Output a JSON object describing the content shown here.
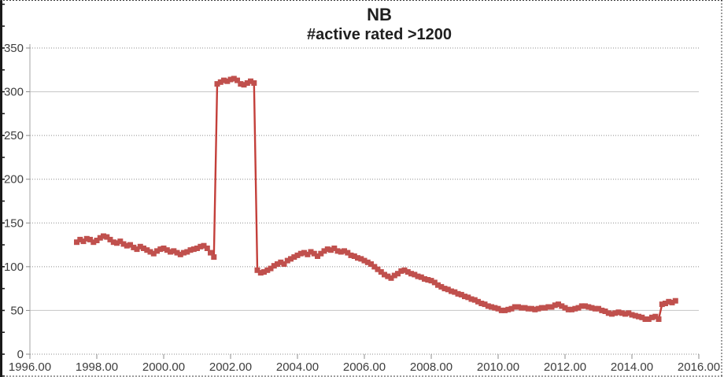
{
  "chart_data": {
    "type": "line",
    "title": "NB",
    "subtitle": "#active rated >1200",
    "xlabel": "",
    "ylabel": "",
    "xlim": [
      1996,
      2016
    ],
    "ylim": [
      0,
      350
    ],
    "grid": "horizontal",
    "legend": "none",
    "marker": "square",
    "x_ticks": {
      "values": [
        1996,
        1998,
        2000,
        2002,
        2004,
        2006,
        2008,
        2010,
        2012,
        2014,
        2016
      ],
      "labels": [
        "1996.00",
        "1998.00",
        "2000.00",
        "2002.00",
        "2004.00",
        "2006.00",
        "2008.00",
        "2010.00",
        "2012.00",
        "2014.00",
        "2016.00"
      ]
    },
    "y_ticks": {
      "values": [
        0,
        50,
        100,
        150,
        200,
        250,
        300,
        350
      ],
      "labels": [
        "0",
        "50",
        "100",
        "150",
        "200",
        "250",
        "300",
        "350"
      ]
    },
    "series": [
      {
        "name": "#active rated >1200",
        "x_start": 1997.4,
        "x_step": 0.1,
        "values": [
          128,
          131,
          129,
          132,
          131,
          128,
          130,
          133,
          135,
          134,
          131,
          128,
          127,
          129,
          126,
          124,
          125,
          122,
          120,
          123,
          121,
          119,
          117,
          115,
          118,
          120,
          121,
          119,
          117,
          118,
          116,
          114,
          116,
          117,
          119,
          120,
          121,
          123,
          124,
          121,
          116,
          111,
          309,
          311,
          313,
          312,
          314,
          315,
          313,
          309,
          308,
          310,
          312,
          310,
          96,
          93,
          94,
          96,
          98,
          101,
          103,
          105,
          103,
          107,
          109,
          111,
          113,
          115,
          116,
          114,
          117,
          115,
          112,
          115,
          118,
          120,
          119,
          121,
          118,
          117,
          118,
          116,
          113,
          112,
          110,
          109,
          107,
          105,
          103,
          100,
          97,
          94,
          91,
          89,
          87,
          90,
          92,
          95,
          96,
          94,
          92,
          91,
          89,
          88,
          86,
          85,
          84,
          82,
          79,
          77,
          75,
          74,
          72,
          71,
          69,
          68,
          66,
          65,
          63,
          62,
          60,
          58,
          57,
          55,
          54,
          53,
          52,
          50,
          50,
          51,
          52,
          54,
          54,
          53,
          53,
          52,
          52,
          51,
          52,
          53,
          53,
          54,
          54,
          56,
          57,
          55,
          53,
          51,
          51,
          52,
          53,
          55,
          55,
          54,
          53,
          52,
          52,
          50,
          49,
          47,
          46,
          47,
          48,
          47,
          46,
          47,
          45,
          44,
          43,
          42,
          40,
          40,
          42,
          43,
          40,
          57,
          58,
          60,
          59,
          61
        ]
      }
    ],
    "colors": {
      "marker": "#c0504d",
      "line": "#c33f3a",
      "grid_dotted": "#8e8e8e",
      "grid_solid": "#c4c4c4",
      "axis": "#a6a6a6",
      "tick": "#8c8c8c",
      "label": "#3d3d3d",
      "title": "#1f1f1f",
      "border": "#1a1a1a"
    }
  }
}
